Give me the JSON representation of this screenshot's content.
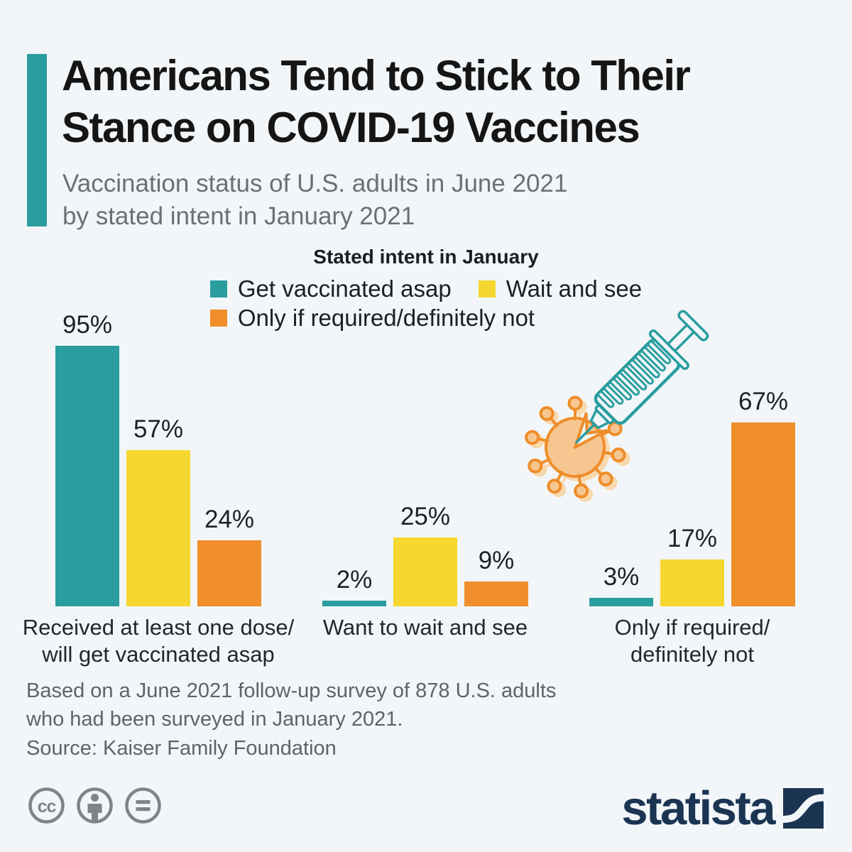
{
  "header": {
    "title": "Americans Tend to Stick to Their\nStance on COVID-19 Vaccines",
    "subtitle": "Vaccination status of U.S. adults in June 2021\nby stated intent in January 2021"
  },
  "chart_data": {
    "type": "bar",
    "legend_title": "Stated intent in January",
    "unit": "%",
    "categories": [
      "Received at least one dose/\nwill get vaccinated asap",
      "Want to wait and see",
      "Only if required/\ndefinitely not"
    ],
    "series": [
      {
        "name": "Get vaccinated asap",
        "color": "#2a9d9f",
        "values": [
          95,
          2,
          3
        ]
      },
      {
        "name": "Wait and see",
        "color": "#f5d72f",
        "values": [
          57,
          25,
          17
        ]
      },
      {
        "name": "Only if required/definitely not",
        "color": "#ef8e2b",
        "values": [
          24,
          9,
          67
        ]
      }
    ],
    "legend_rows": [
      [
        0,
        1
      ],
      [
        2
      ]
    ],
    "ylim": [
      0,
      100
    ],
    "grid": false,
    "legend_position": "top-center",
    "value_label_format": "{value}%"
  },
  "illustration": {
    "name": "syringe-injecting-coronavirus",
    "syringe_color": "#2a9d9f",
    "virus_outline": "#ee8d2a",
    "virus_fill": "#f6c691",
    "virus_shadow": "#f8d8ad"
  },
  "footer": {
    "note": "Based on a June 2021 follow-up survey of 878 U.S. adults\nwho had been surveyed in January 2021.",
    "source": "Source: Kaiser Family Foundation",
    "license_icons": [
      "cc-icon",
      "attribution-person-icon",
      "equals-icon"
    ]
  },
  "branding": {
    "logo_text": "statista"
  },
  "colors": {
    "background": "#f2f6f9",
    "accent": "#2a9d9f",
    "title_text": "#151515",
    "muted_text": "#5e6367",
    "brand_navy": "#1b3452",
    "icon_gray": "#7e8487"
  }
}
